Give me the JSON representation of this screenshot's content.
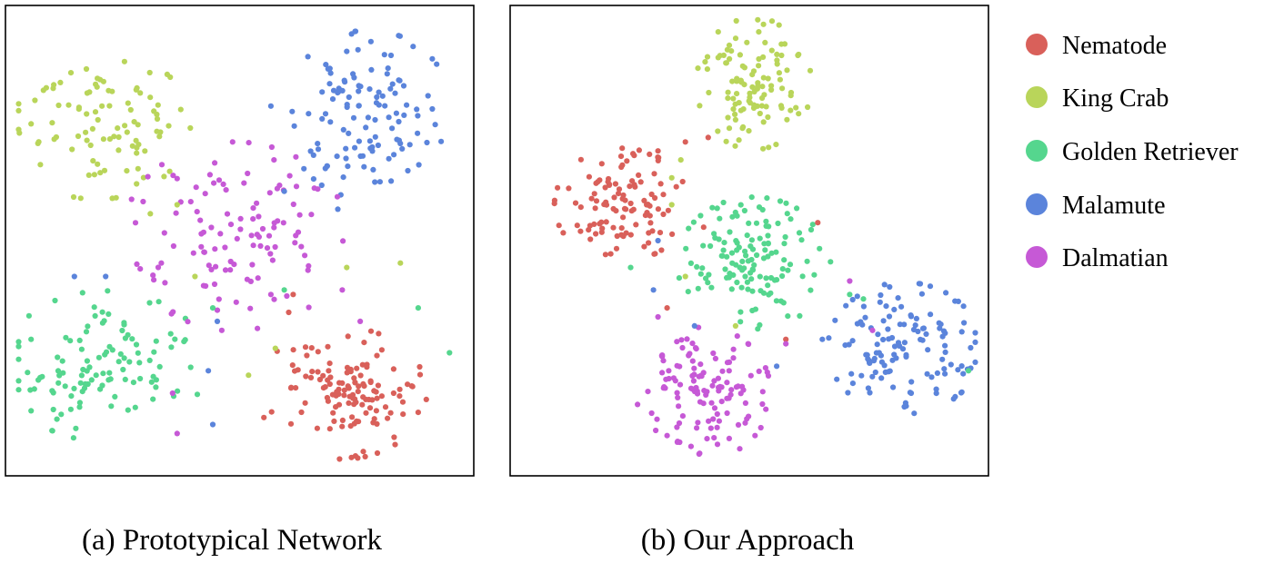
{
  "legend": [
    {
      "name": "Nematode",
      "color": "#d9605a"
    },
    {
      "name": "King Crab",
      "color": "#b9d55a"
    },
    {
      "name": "Golden Retriever",
      "color": "#55d68e"
    },
    {
      "name": "Malamute",
      "color": "#5b84db"
    },
    {
      "name": "Dalmatian",
      "color": "#c659d6"
    }
  ],
  "chart_data": [
    {
      "type": "scatter",
      "caption": "(a) Prototypical Network",
      "xlim": [
        0,
        100
      ],
      "ylim": [
        0,
        100
      ],
      "grid": false,
      "axes_visible": false,
      "clusters": [
        {
          "name": "Nematode",
          "center": [
            73,
            16
          ],
          "spread": [
            9,
            7
          ],
          "n": 130
        },
        {
          "name": "King Crab",
          "center": [
            18,
            76
          ],
          "spread": [
            10,
            8
          ],
          "n": 95
        },
        {
          "name": "Golden Retriever",
          "center": [
            20,
            22
          ],
          "spread": [
            11,
            8
          ],
          "n": 115
        },
        {
          "name": "Malamute",
          "center": [
            79,
            78
          ],
          "spread": [
            9,
            9
          ],
          "n": 120
        },
        {
          "name": "Dalmatian",
          "center": [
            49,
            51
          ],
          "spread": [
            12,
            10
          ],
          "n": 115
        }
      ],
      "outliers": [
        {
          "name": "Malamute",
          "points": [
            [
              13,
              42
            ],
            [
              20,
              42
            ],
            [
              45,
              32
            ],
            [
              43,
              21
            ],
            [
              44,
              9
            ],
            [
              57,
              80
            ],
            [
              72,
              57
            ],
            [
              60,
              61
            ]
          ]
        },
        {
          "name": "King Crab",
          "points": [
            [
              36,
              58
            ],
            [
              40,
              42
            ],
            [
              30,
              56
            ],
            [
              86,
              45
            ],
            [
              74,
              44
            ],
            [
              58,
              26
            ],
            [
              52,
              20
            ]
          ]
        },
        {
          "name": "Golden Retriever",
          "points": [
            [
              97,
              25
            ],
            [
              90,
              35
            ],
            [
              60,
              39
            ],
            [
              44,
              35
            ]
          ]
        },
        {
          "name": "Dalmatian",
          "points": [
            [
              36,
              7
            ],
            [
              35,
              16
            ],
            [
              57,
              38
            ],
            [
              73,
              39
            ],
            [
              46,
              30
            ],
            [
              77,
              32
            ]
          ]
        },
        {
          "name": "Nematode",
          "points": [
            [
              62,
              38
            ],
            [
              61,
              34
            ]
          ]
        }
      ]
    },
    {
      "type": "scatter",
      "caption": "(b) Our Approach",
      "xlim": [
        0,
        100
      ],
      "ylim": [
        0,
        100
      ],
      "grid": false,
      "axes_visible": false,
      "clusters": [
        {
          "name": "Nematode",
          "center": [
            22,
            58
          ],
          "spread": [
            7,
            6
          ],
          "n": 110
        },
        {
          "name": "King Crab",
          "center": [
            51,
            85
          ],
          "spread": [
            6,
            7
          ],
          "n": 110
        },
        {
          "name": "Golden Retriever",
          "center": [
            51,
            45
          ],
          "spread": [
            8,
            7
          ],
          "n": 135
        },
        {
          "name": "Malamute",
          "center": [
            84,
            26
          ],
          "spread": [
            8,
            7
          ],
          "n": 130
        },
        {
          "name": "Dalmatian",
          "center": [
            40,
            16
          ],
          "spread": [
            7,
            7
          ],
          "n": 125
        }
      ],
      "outliers": [
        {
          "name": "Malamute",
          "points": [
            [
              30,
              50
            ],
            [
              29,
              39
            ],
            [
              38,
              31
            ],
            [
              56,
              22
            ],
            [
              66,
              28
            ]
          ]
        },
        {
          "name": "Nematode",
          "points": [
            [
              30,
              70
            ],
            [
              36,
              72
            ],
            [
              41,
              73
            ],
            [
              32,
              35
            ],
            [
              65,
              54
            ],
            [
              58,
              28
            ],
            [
              40,
              53
            ]
          ]
        },
        {
          "name": "King Crab",
          "points": [
            [
              33,
              64
            ],
            [
              35,
              68
            ],
            [
              36,
              42
            ],
            [
              47,
              31
            ],
            [
              33,
              58
            ]
          ]
        },
        {
          "name": "Golden Retriever",
          "points": [
            [
              24,
              44
            ],
            [
              72,
              38
            ],
            [
              75,
              37
            ],
            [
              98,
              21
            ]
          ]
        },
        {
          "name": "Dalmatian",
          "points": [
            [
              72,
              41
            ],
            [
              77,
              30
            ],
            [
              30,
              33
            ],
            [
              58,
              27
            ]
          ]
        }
      ]
    }
  ]
}
